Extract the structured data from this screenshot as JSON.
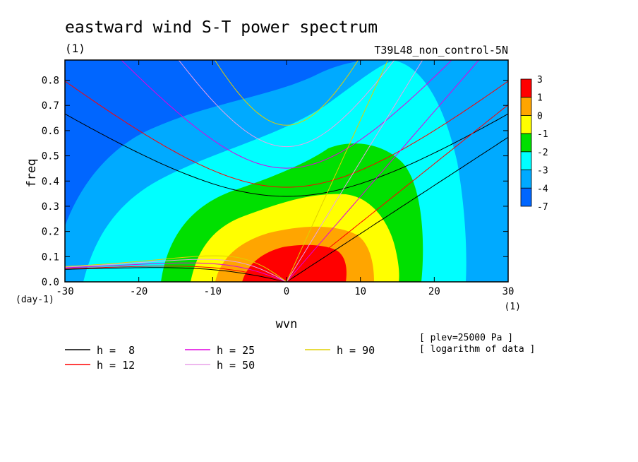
{
  "chart_data": {
    "type": "heatmap",
    "title": "eastward wind S-T power spectrum",
    "subtitle_left": "(1)",
    "subtitle_right": "T39L48_non_control-5N",
    "xlabel": "wvn",
    "ylabel": "freq",
    "x_unit": "(1)",
    "y_unit": "(day-1)",
    "xlim": [
      -30,
      30
    ],
    "ylim": [
      0,
      0.88
    ],
    "x_ticks": [
      -30,
      -20,
      -10,
      0,
      10,
      20,
      30
    ],
    "y_ticks": [
      0.0,
      0.1,
      0.2,
      0.3,
      0.4,
      0.5,
      0.6,
      0.7,
      0.8
    ],
    "y_tick_labels": [
      "0.0",
      "0.1",
      "0.2",
      "0.3",
      "0.4",
      "0.5",
      "0.6",
      "0.7",
      "0.8"
    ],
    "colorbar": {
      "labels": [
        "3",
        "1",
        "0",
        "-1",
        "-2",
        "-3",
        "-4",
        "-7"
      ],
      "colors": [
        "#ff0000",
        "#ffa500",
        "#ffff00",
        "#00e000",
        "#00ffff",
        "#00aaff",
        "#0066ff"
      ]
    },
    "field": {
      "description": "logarithm of power, contour bands",
      "levels": [
        -7,
        -4,
        -3,
        -2,
        -1,
        0,
        1,
        3
      ],
      "peak": {
        "x": 4,
        "y": 0.07,
        "value": 1.5
      }
    },
    "dispersion_curves": [
      {
        "name": "h =  8",
        "h": 8,
        "color": "#000000"
      },
      {
        "name": "h = 12",
        "h": 12,
        "color": "#ff0000"
      },
      {
        "name": "h = 25",
        "h": 25,
        "color": "#e000e0"
      },
      {
        "name": "h = 50",
        "h": 50,
        "color": "#e8a0e8"
      },
      {
        "name": "h = 90",
        "h": 90,
        "color": "#e0d000"
      }
    ],
    "notes": [
      "[ plev=25000 Pa ]",
      "[ logarithm of data ]"
    ]
  }
}
